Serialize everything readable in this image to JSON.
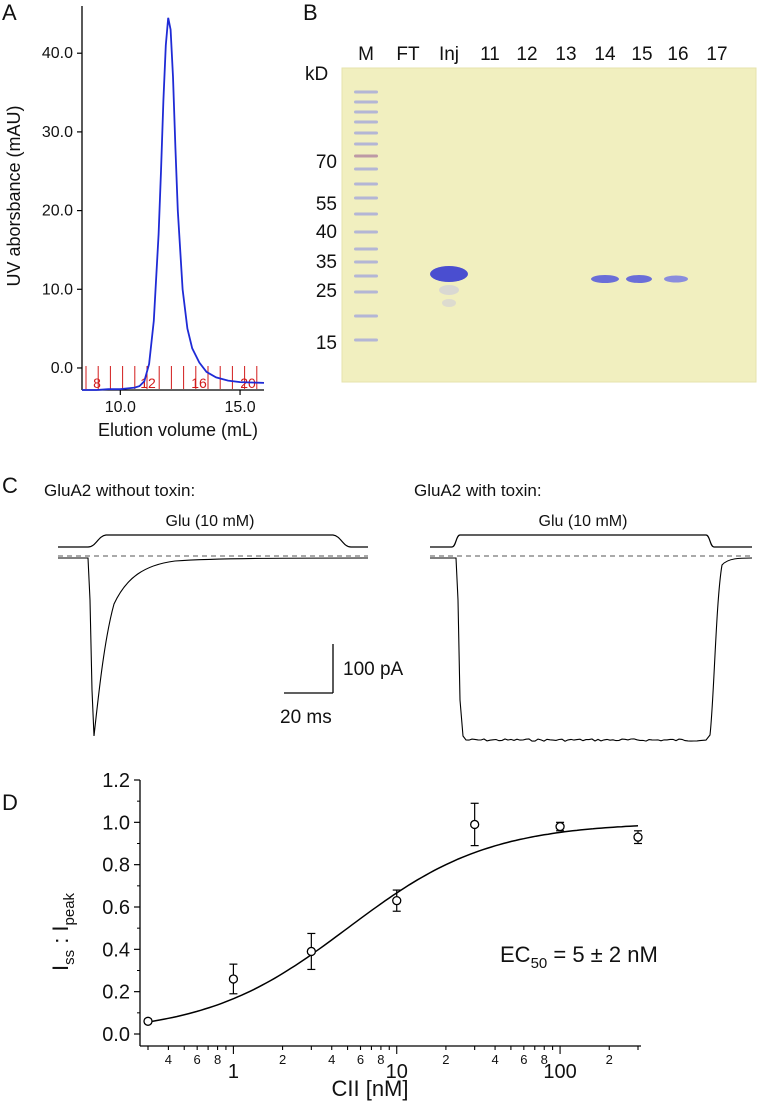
{
  "panels": {
    "A": "A",
    "B": "B",
    "C": "C",
    "D": "D"
  },
  "colors": {
    "trace_blue": "#1f2bd6",
    "fraction_red": "#d21b1b",
    "gel_bg": "#f1efbf",
    "band_blue": "#4a4ed0"
  },
  "chart_data": [
    {
      "type": "line",
      "panel": "A",
      "xlabel": "Elution volume (mL)",
      "ylabel": "UV aborsbance (mAU)",
      "xlim": [
        8.4,
        16.0
      ],
      "ylim": [
        -2.8,
        46
      ],
      "x_ticks": [
        "10.0",
        "15.0"
      ],
      "y_ticks": [
        "0.0",
        "10.0",
        "20.0",
        "30.0",
        "40.0"
      ],
      "fraction_labels": [
        "8",
        "12",
        "16",
        "20"
      ],
      "series": [
        {
          "x": [
            8.4,
            9.0,
            9.5,
            10.0,
            10.3,
            10.6,
            10.8,
            11.0,
            11.2,
            11.4,
            11.6,
            11.7,
            11.8,
            11.9,
            12.0,
            12.1,
            12.2,
            12.3,
            12.4,
            12.6,
            12.8,
            13.0,
            13.3,
            13.6,
            14.0,
            14.5,
            15.0,
            16.0
          ],
          "y": [
            -2.8,
            -2.8,
            -2.7,
            -2.7,
            -2.6,
            -2.5,
            -2.3,
            -1.7,
            0.5,
            6,
            17,
            25,
            34,
            41,
            44.5,
            43,
            37,
            28,
            20,
            10,
            5,
            2.5,
            0.7,
            -0.5,
            -1.2,
            -1.6,
            -1.8,
            -1.9
          ]
        }
      ]
    },
    {
      "type": "gel",
      "panel": "B",
      "lanes": [
        "M",
        "FT",
        "Inj",
        "11",
        "12",
        "13",
        "14",
        "15",
        "16",
        "17"
      ],
      "unit": "kD",
      "markers": [
        "70",
        "55",
        "40",
        "35",
        "25",
        "15"
      ]
    },
    {
      "type": "line",
      "panel": "C",
      "traces": [
        {
          "title": "GluA2 without toxin:",
          "stimulus": "Glu (10 mM)"
        },
        {
          "title": "GluA2 with toxin:",
          "stimulus": "Glu (10 mM)"
        }
      ],
      "scalebar": {
        "current": "100 pA",
        "time": "20 ms"
      }
    },
    {
      "type": "scatter",
      "panel": "D",
      "xlabel": "CII [nM]",
      "ylabel_main": "I",
      "ylabel_sub1": "ss",
      "ylabel_sep": " : I",
      "ylabel_sub2": "peak",
      "xscale": "log",
      "xlim": [
        0.3,
        300
      ],
      "ylim": [
        0.0,
        1.2
      ],
      "y_ticks": [
        "0.0",
        "0.2",
        "0.4",
        "0.6",
        "0.8",
        "1.0",
        "1.2"
      ],
      "x_major": [
        "1",
        "10",
        "100"
      ],
      "x_minor_labels": [
        "4",
        "6",
        "8",
        "2",
        "4",
        "6",
        "8",
        "2",
        "4",
        "6",
        "8",
        "2"
      ],
      "annotation": {
        "main": "EC",
        "sub": "50",
        "rest": " = 5 ± 2 nM"
      },
      "series": [
        {
          "x": [
            0.3,
            1,
            3,
            10,
            30,
            100,
            300
          ],
          "y": [
            0.06,
            0.26,
            0.39,
            0.63,
            0.99,
            0.98,
            0.93
          ],
          "err": [
            0.01,
            0.07,
            0.085,
            0.05,
            0.1,
            0.02,
            0.03
          ]
        }
      ],
      "fit": {
        "ec50": 5,
        "hill": 1.0,
        "bottom": 0.0,
        "top": 1.0
      }
    }
  ]
}
